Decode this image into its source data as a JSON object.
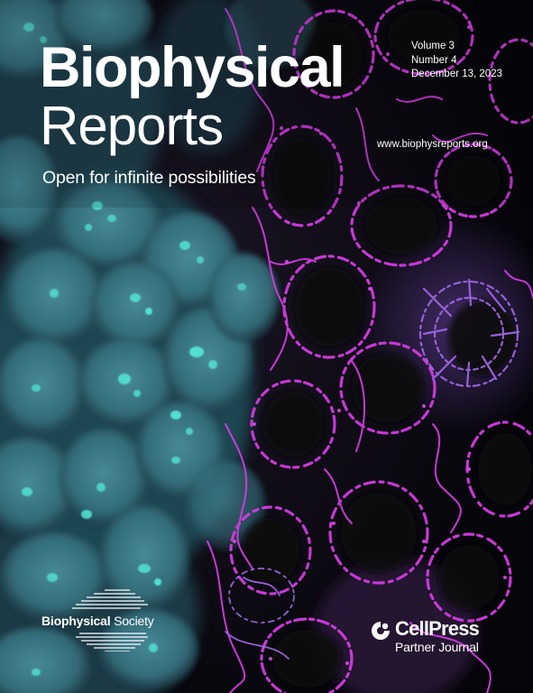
{
  "journal": {
    "title_line1": "Biophysical",
    "title_line2": "Reports",
    "tagline": "Open for infinite possibilities",
    "volume": "Volume 3",
    "number": "Number 4",
    "date": "December 13, 2023",
    "url": "www.biophysreports.org"
  },
  "society": {
    "name_bold": "Biophysical",
    "name_regular": " Society"
  },
  "publisher": {
    "name": "CellPress",
    "subtitle": "Partner Journal"
  },
  "colors": {
    "cyan_cells": "#3f9aa2",
    "cyan_nuclei": "#52ded2",
    "magenta_mitochondria": "#d23ce0",
    "violet_mitochondria": "#a46ae8",
    "background": "#05060a",
    "text": "#ffffff"
  },
  "icons": {
    "society_logo": "horizontal-lines-logo",
    "publisher_logo": "cellpress-mark"
  }
}
